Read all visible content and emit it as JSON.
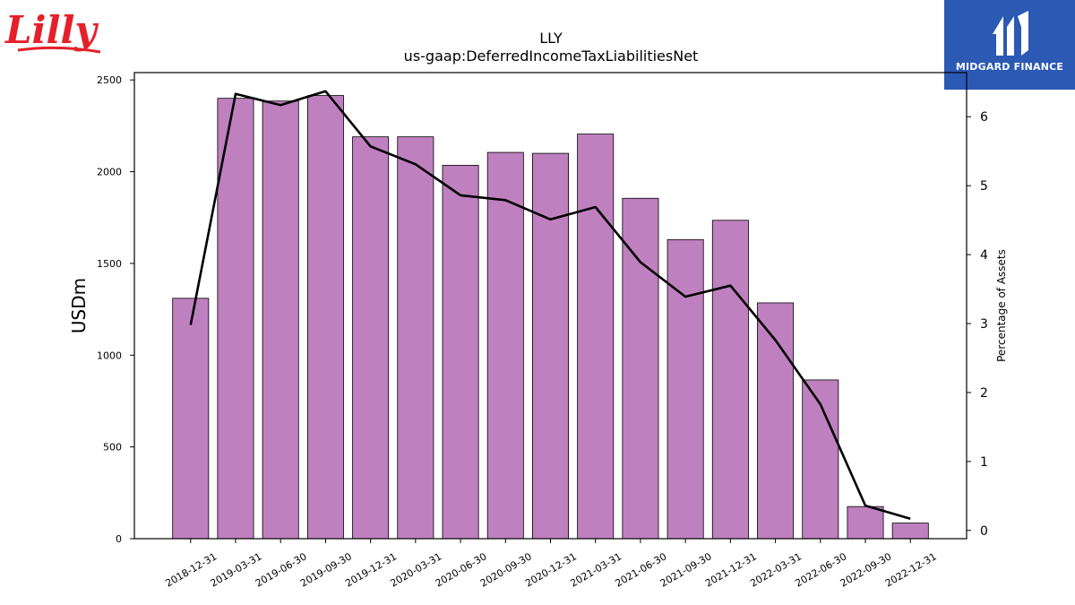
{
  "brand": {
    "company_logo_text": "Lilly",
    "company_logo_color": "#e4202a",
    "publisher_logo_text": "MIDGARD FINANCE",
    "publisher_logo_color": "#2b59b4"
  },
  "chart_data": {
    "type": "bar",
    "title": "LLY",
    "subtitle": "us-gaap:DeferredIncomeTaxLiabilitiesNet",
    "ylabel": "USDm",
    "y2label": "Percentage of Assets",
    "categories": [
      "2018-12-31",
      "2019-03-31",
      "2019-06-30",
      "2019-09-30",
      "2019-12-31",
      "2020-03-31",
      "2020-06-30",
      "2020-09-30",
      "2020-12-31",
      "2021-03-31",
      "2021-06-30",
      "2021-09-30",
      "2021-12-31",
      "2022-03-31",
      "2022-06-30",
      "2022-09-30",
      "2022-12-31"
    ],
    "series": [
      {
        "values": [
          1310,
          2400,
          2385,
          2415,
          2190,
          2190,
          2035,
          2105,
          2100,
          2205,
          1855,
          1630,
          1735,
          1285,
          865,
          175,
          85
        ],
        "color": "#bf80bf",
        "axis": "left"
      },
      {
        "values": [
          2.98,
          6.33,
          6.17,
          6.37,
          5.57,
          5.31,
          4.86,
          4.79,
          4.51,
          4.69,
          3.89,
          3.39,
          3.55,
          2.76,
          1.83,
          0.36,
          0.17
        ],
        "color": "#000000",
        "axis": "right",
        "style": "line"
      }
    ],
    "ylim": [
      0,
      2540
    ],
    "y2lim": [
      -0.12,
      6.64
    ],
    "yticks": [
      0,
      500,
      1000,
      1500,
      2000,
      2500
    ],
    "y2ticks": [
      0,
      1,
      2,
      3,
      4,
      5,
      6
    ],
    "grid": false
  }
}
